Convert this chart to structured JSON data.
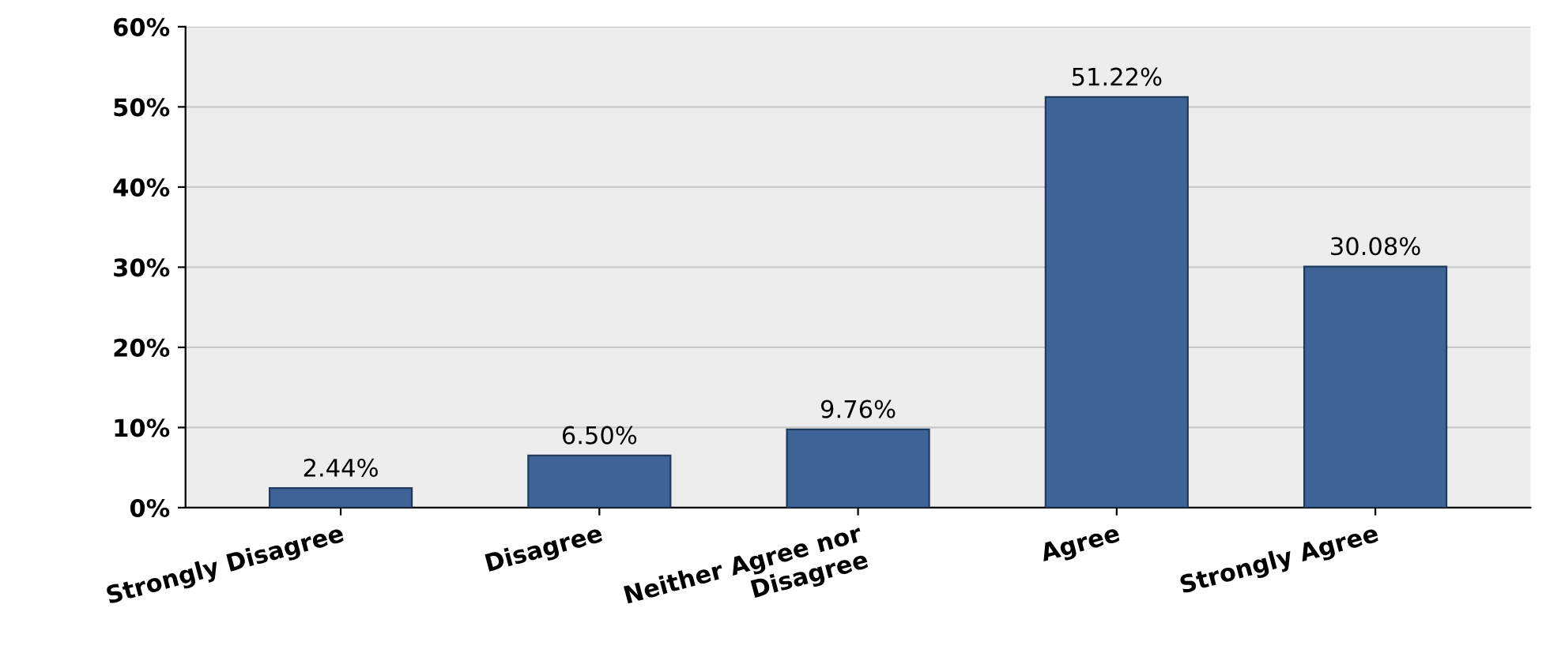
{
  "chart_data": {
    "type": "bar",
    "categories": [
      "Strongly Disagree",
      "Disagree",
      "Neither Agree nor\nDisagree",
      "Agree",
      "Strongly Agree"
    ],
    "values": [
      2.44,
      6.5,
      9.76,
      51.22,
      30.08
    ],
    "value_labels": [
      "2.44%",
      "6.50%",
      "9.76%",
      "51.22%",
      "30.08%"
    ],
    "color": "#3d6397",
    "ylim": [
      0,
      60
    ],
    "yticks": [
      {
        "value": 0,
        "label": "0%"
      },
      {
        "value": 10,
        "label": "10%"
      },
      {
        "value": 20,
        "label": "20%"
      },
      {
        "value": 30,
        "label": "30%"
      },
      {
        "value": 40,
        "label": "40%"
      },
      {
        "value": 50,
        "label": "50%"
      },
      {
        "value": 60,
        "label": "60%"
      }
    ],
    "grid": "y"
  }
}
